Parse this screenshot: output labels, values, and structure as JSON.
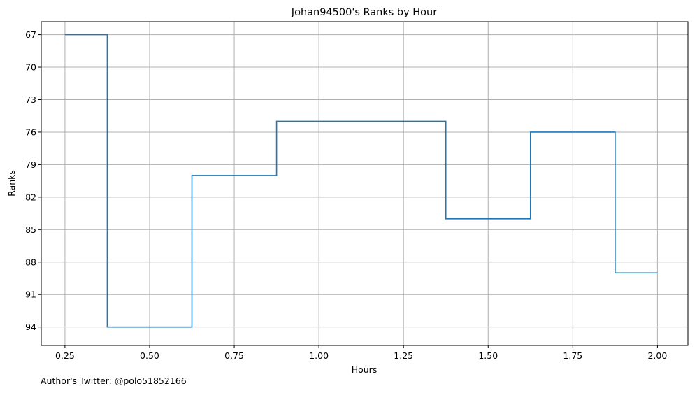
{
  "chart_data": {
    "type": "line",
    "step": "post",
    "title": "Johan94500's Ranks by Hour",
    "xlabel": "Hours",
    "ylabel": "Ranks",
    "xlim": [
      0.18,
      2.09
    ],
    "ylim": [
      95.7,
      65.8
    ],
    "y_inverted": true,
    "grid": true,
    "x_ticks": [
      0.25,
      0.5,
      0.75,
      1.0,
      1.25,
      1.5,
      1.75,
      2.0
    ],
    "x_tick_labels": [
      "0.25",
      "0.50",
      "0.75",
      "1.00",
      "1.25",
      "1.50",
      "1.75",
      "2.00"
    ],
    "y_ticks": [
      67,
      70,
      73,
      76,
      79,
      82,
      85,
      88,
      91,
      94
    ],
    "y_tick_labels": [
      "67",
      "70",
      "73",
      "76",
      "79",
      "82",
      "85",
      "88",
      "91",
      "94"
    ],
    "series": [
      {
        "color": "#1f77b4",
        "x": [
          0.25,
          0.375,
          0.625,
          0.875,
          1.375,
          1.625,
          1.875,
          2.0
        ],
        "y": [
          67,
          94,
          80,
          75,
          84,
          76,
          89,
          89
        ]
      }
    ]
  },
  "footer": {
    "credit": "Author's Twitter: @polo51852166"
  }
}
